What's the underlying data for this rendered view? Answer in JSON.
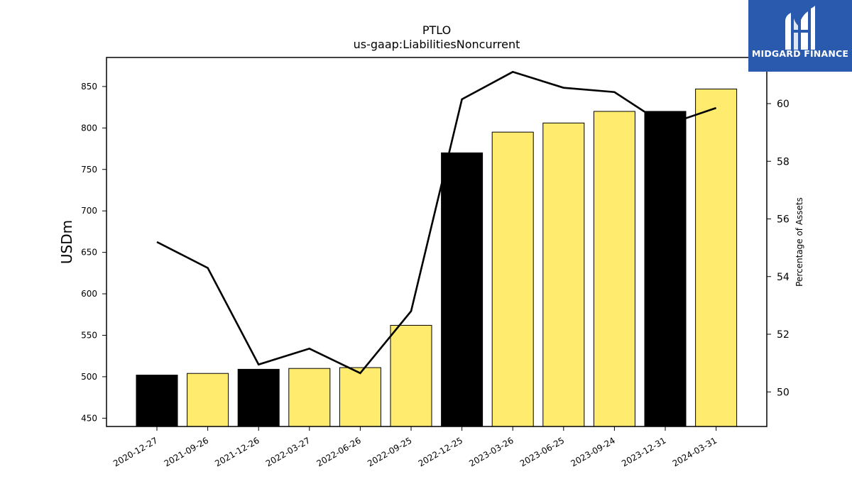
{
  "logo": {
    "text": "MIDGARD FINANCE",
    "icon": "midgard-m-logo-icon",
    "background": "#2a5aad"
  },
  "chart_data": {
    "type": "bar",
    "title": "PTLO",
    "subtitle": "us-gaap:LiabilitiesNoncurrent",
    "ylabel": "USDm",
    "y2label": "Percentage of Assets",
    "categories": [
      "2020-12-27",
      "2021-09-26",
      "2021-12-26",
      "2022-03-27",
      "2022-06-26",
      "2022-09-25",
      "2022-12-25",
      "2023-03-26",
      "2023-06-25",
      "2023-09-24",
      "2023-12-31",
      "2024-03-31"
    ],
    "values": [
      502,
      504,
      509,
      510,
      511,
      562,
      770,
      795,
      806,
      820,
      820,
      847
    ],
    "bar_colors": [
      "#000000",
      "#ffec6e",
      "#000000",
      "#ffec6e",
      "#ffec6e",
      "#ffec6e",
      "#000000",
      "#ffec6e",
      "#ffec6e",
      "#ffec6e",
      "#000000",
      "#ffec6e"
    ],
    "line_values": [
      55.2,
      54.3,
      50.95,
      51.5,
      50.65,
      52.8,
      60.15,
      61.1,
      60.55,
      60.4,
      59.25,
      59.85
    ],
    "line_color": "#000000",
    "ylim": [
      440,
      885
    ],
    "yticks": [
      450,
      500,
      550,
      600,
      650,
      700,
      750,
      800,
      850
    ],
    "y2lim": [
      48.8,
      61.6
    ],
    "y2ticks": [
      50,
      52,
      54,
      56,
      58,
      60
    ],
    "grid": false,
    "legend": "none"
  }
}
